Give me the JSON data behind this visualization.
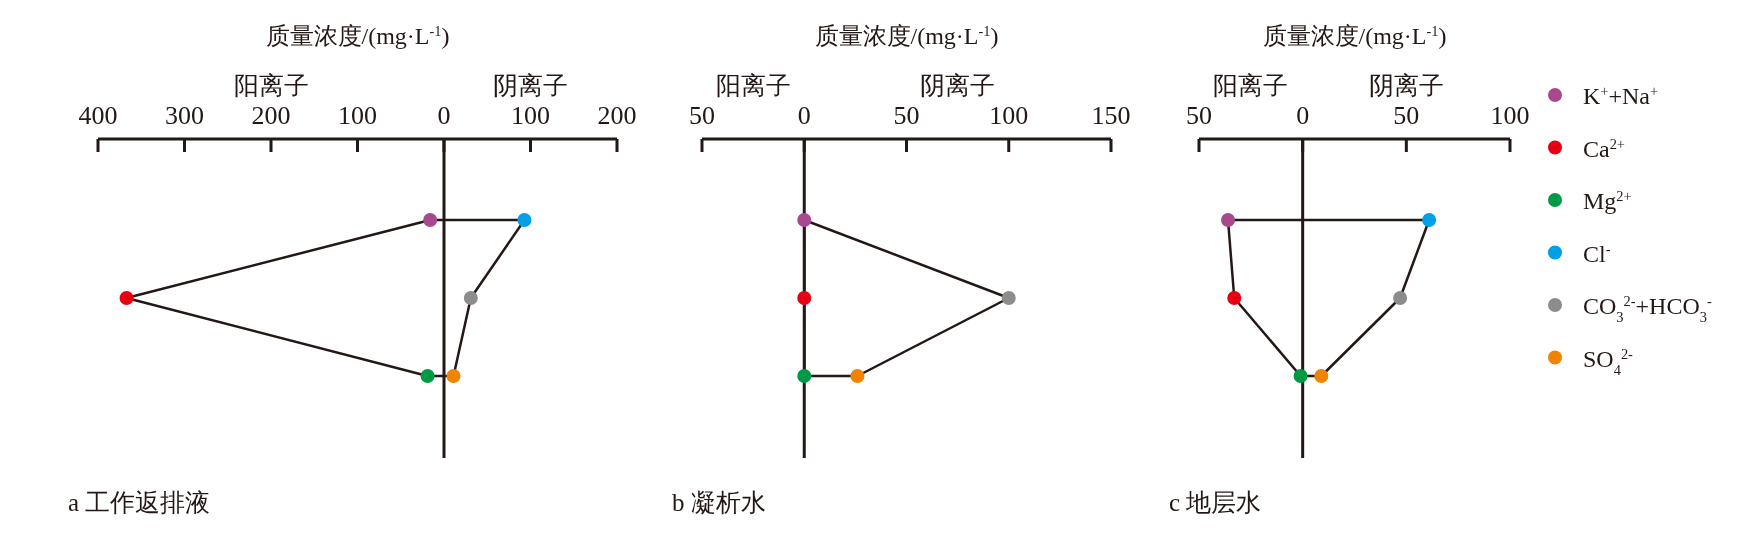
{
  "chart_data": [
    {
      "type": "scatter",
      "orientation": "horizontal",
      "title": "a 工作返排液",
      "xlabel": "质量浓度/(mg·L$^{-1}$)",
      "annotations": [
        "阳离子",
        "阴离子"
      ],
      "categories": [
        null,
        null,
        null
      ],
      "xlim": [
        -400,
        200
      ],
      "xticks": [
        {
          "value": -400,
          "label": "400"
        },
        {
          "value": -300,
          "label": "300"
        },
        {
          "value": -200,
          "label": "200"
        },
        {
          "value": -100,
          "label": "100"
        },
        0,
        100,
        200
      ],
      "ref_lines": [
        {
          "axis": "x",
          "value": 0
        }
      ],
      "grid": false,
      "legend": false,
      "marker": "circle",
      "series": [
        {
          "color": "#a8488e",
          "values": [
            -16,
            null,
            null
          ]
        },
        {
          "color": "#e60012",
          "values": [
            null,
            -367,
            null
          ]
        },
        {
          "color": "#009944",
          "values": [
            null,
            null,
            -19
          ]
        },
        {
          "color": "#00a0e9",
          "values": [
            93,
            null,
            null
          ]
        },
        {
          "color": "#8c8c8c",
          "values": [
            null,
            31,
            null
          ]
        },
        {
          "color": "#f08300",
          "values": [
            null,
            null,
            11
          ]
        }
      ]
    },
    {
      "type": "scatter",
      "orientation": "horizontal",
      "title": "b 凝析水",
      "xlabel": "质量浓度/(mg·L$^{-1}$)",
      "annotations": [
        "阳离子",
        "阴离子"
      ],
      "categories": [
        null,
        null,
        null
      ],
      "xlim": [
        -50,
        150
      ],
      "xticks": [
        {
          "value": -50,
          "label": "50"
        },
        0,
        50,
        100,
        150
      ],
      "ref_lines": [
        {
          "axis": "x",
          "value": 0
        }
      ],
      "grid": false,
      "legend": false,
      "marker": "circle",
      "series": [
        {
          "color": "#a8488e",
          "values": [
            0,
            null,
            null
          ]
        },
        {
          "color": "#e60012",
          "values": [
            null,
            0,
            null
          ]
        },
        {
          "color": "#009944",
          "values": [
            null,
            null,
            0
          ]
        },
        {
          "color": "#8c8c8c",
          "values": [
            null,
            100,
            null
          ]
        },
        {
          "color": "#f08300",
          "values": [
            null,
            null,
            26
          ]
        }
      ]
    },
    {
      "type": "scatter",
      "orientation": "horizontal",
      "title": "c 地层水",
      "xlabel": "质量浓度/(mg·L$^{-1}$)",
      "annotations": [
        "阳离子",
        "阴离子"
      ],
      "categories": [
        null,
        null,
        null
      ],
      "xlim": [
        -50,
        100
      ],
      "xticks": [
        {
          "value": -50,
          "label": "50"
        },
        0,
        50,
        100
      ],
      "ref_lines": [
        {
          "axis": "x",
          "value": 0
        }
      ],
      "grid": false,
      "legend": "right",
      "marker": "circle",
      "series": [
        {
          "name": "K$^{+}$+Na$^{+}$",
          "color": "#a8488e",
          "values": [
            -36,
            null,
            null
          ]
        },
        {
          "name": "Ca$^{2+}$",
          "color": "#e60012",
          "values": [
            null,
            -33,
            null
          ]
        },
        {
          "name": "Mg$^{2+}$",
          "color": "#009944",
          "values": [
            null,
            null,
            -1
          ]
        },
        {
          "name": "Cl$^{-}$",
          "color": "#00a0e9",
          "values": [
            61,
            null,
            null
          ]
        },
        {
          "name": "CO$_{3}$$^{2-}$+HCO$_{3}$$^{-}$",
          "color": "#8c8c8c",
          "values": [
            null,
            47,
            null
          ]
        },
        {
          "name": "SO$_{4}$$^{2-}$",
          "color": "#f08300",
          "values": [
            null,
            null,
            9
          ]
        }
      ]
    }
  ]
}
